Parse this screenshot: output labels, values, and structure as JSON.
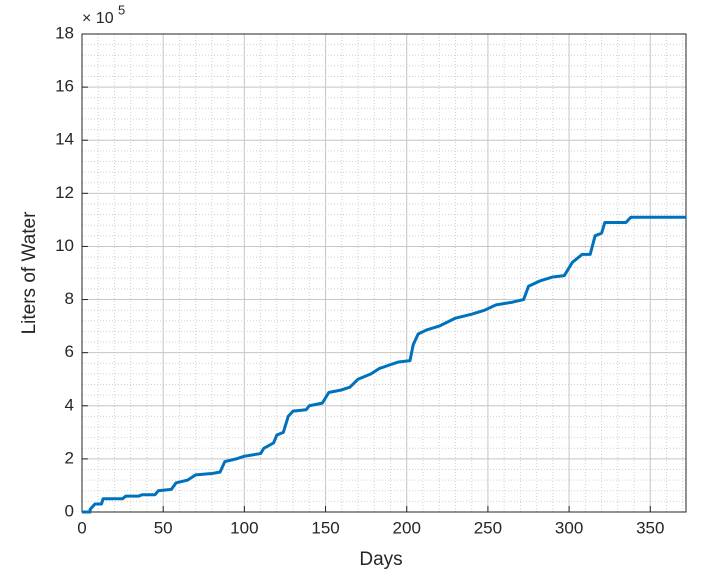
{
  "chart_data": {
    "type": "line",
    "xlabel": "Days",
    "ylabel": "Liters of Water",
    "y_multiplier": {
      "base": "× 10",
      "exponent": "5"
    },
    "x": [
      0,
      5,
      5,
      8,
      12,
      13,
      25,
      27,
      35,
      37,
      45,
      47,
      55,
      58,
      65,
      70,
      80,
      85,
      88,
      95,
      100,
      110,
      112,
      118,
      120,
      124,
      127,
      130,
      138,
      140,
      148,
      152,
      160,
      165,
      170,
      178,
      183,
      190,
      195,
      202,
      204,
      207,
      212,
      220,
      230,
      240,
      248,
      255,
      265,
      272,
      275,
      282,
      290,
      297,
      302,
      308,
      313,
      316,
      320,
      322,
      335,
      338,
      372
    ],
    "series": [
      {
        "name": "Liters of Water",
        "color": "#0072bd",
        "values": [
          0,
          0,
          0.1,
          0.3,
          0.3,
          0.5,
          0.5,
          0.6,
          0.6,
          0.65,
          0.65,
          0.8,
          0.85,
          1.1,
          1.2,
          1.4,
          1.45,
          1.5,
          1.9,
          2.0,
          2.1,
          2.2,
          2.4,
          2.6,
          2.9,
          3.0,
          3.6,
          3.8,
          3.85,
          4.0,
          4.1,
          4.5,
          4.6,
          4.7,
          5.0,
          5.2,
          5.4,
          5.55,
          5.65,
          5.7,
          6.3,
          6.7,
          6.85,
          7.0,
          7.3,
          7.45,
          7.6,
          7.8,
          7.9,
          8.0,
          8.5,
          8.7,
          8.85,
          8.9,
          9.4,
          9.7,
          9.7,
          10.4,
          10.5,
          10.9,
          10.9,
          11.1,
          11.1
        ]
      }
    ],
    "xlim": [
      0,
      372
    ],
    "xticks": [
      0,
      50,
      100,
      150,
      200,
      250,
      300,
      350
    ],
    "ylim": [
      0,
      18
    ],
    "yticks": [
      0,
      2,
      4,
      6,
      8,
      10,
      12,
      14,
      16,
      18
    ],
    "grid": true,
    "minor_grid": true
  }
}
